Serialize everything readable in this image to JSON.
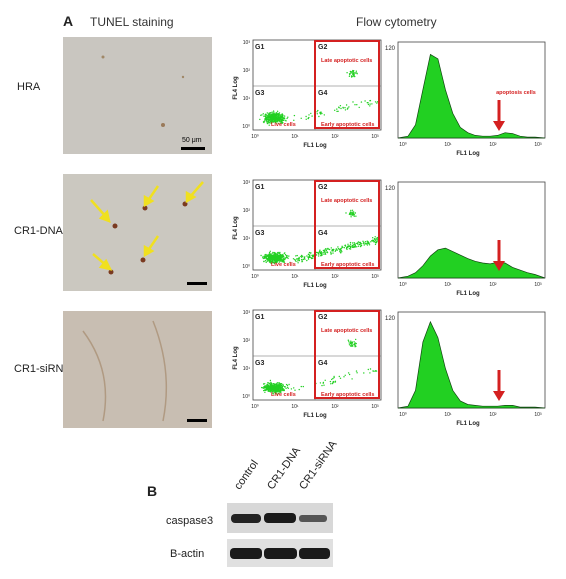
{
  "panel_a": {
    "letter": "A",
    "col_tunel": "TUNEL staining",
    "col_flow": "Flow cytometry",
    "rows": [
      {
        "label": "HRA",
        "scalebar": "50 μm"
      },
      {
        "label": "CR1-DNA",
        "scalebar": ""
      },
      {
        "label": "CR1-siRNA",
        "scalebar": ""
      }
    ],
    "dotplot": {
      "gates": [
        "G1",
        "G2",
        "G3",
        "G4"
      ],
      "late": "Late apoptotic cells",
      "early": "Early apoptotic cells",
      "live": "Live cells",
      "xlabel": "FL1 Log",
      "ylabel": "FL4 Log",
      "xticks": [
        "10⁰",
        "10¹",
        "10²",
        "10³"
      ],
      "yticks": [
        "10⁰",
        "10¹",
        "10²",
        "10³"
      ]
    },
    "histogram": {
      "ytop": "120",
      "xlabel": "FL1 Log",
      "xticks": [
        "10⁰",
        "10¹",
        "10²",
        "10³"
      ],
      "annotation": "apoptosis cells"
    }
  },
  "panel_b": {
    "letter": "B",
    "lanes": [
      "control",
      "CR1-DNA",
      "CR1-siRNA"
    ],
    "bands": [
      "caspase3",
      "B-actin"
    ]
  },
  "colors": {
    "gate_box": "#d42020",
    "events": "#22d022",
    "arrow": "#d42020",
    "tunel_arrow": "#f0e020"
  }
}
